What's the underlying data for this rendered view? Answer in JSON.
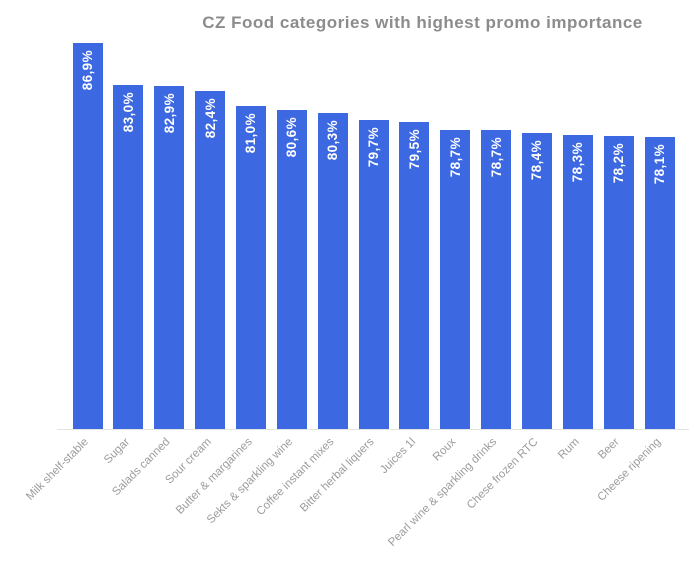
{
  "window": {
    "background": "#ffffff"
  },
  "colors": {
    "bar": "#3C69E1",
    "title_text": "#8C8C8C",
    "axis_label_text": "#9C9C9C",
    "value_label_text": "#FFFFFF",
    "baseline": "#E3E3E3",
    "background": "#FFFFFF"
  },
  "chart_data": {
    "type": "bar",
    "title": "CZ Food categories with highest promo importance",
    "categories": [
      "Milk shelf-stable",
      "Sugar",
      "Salads canned",
      "Sour cream",
      "Butter & margarines",
      "Sekts & sparkling wine",
      "Coffee instant mixes",
      "Bitter herbal liquers",
      "Juices 1l",
      "Roux",
      "Pearl wine & sparkling drinks",
      "Chese frozen RTC",
      "Rum",
      "Beer",
      "Cheese ripening"
    ],
    "values": [
      86.9,
      83.0,
      82.9,
      82.4,
      81.0,
      80.6,
      80.3,
      79.7,
      79.5,
      78.7,
      78.7,
      78.4,
      78.3,
      78.2,
      78.1
    ],
    "value_labels": [
      "86,9%",
      "83,0%",
      "82,9%",
      "82,4%",
      "81,0%",
      "80,6%",
      "80,3%",
      "79,7%",
      "79,5%",
      "78,7%",
      "78,7%",
      "78,4%",
      "78,3%",
      "78,2%",
      "78,1%"
    ],
    "xlabel": "",
    "ylabel": "",
    "ylim": [
      50.5,
      87.6
    ],
    "grid": false,
    "legend": false,
    "value_label_rotation": -90,
    "x_tick_rotation": -45,
    "decimal_separator": ","
  }
}
